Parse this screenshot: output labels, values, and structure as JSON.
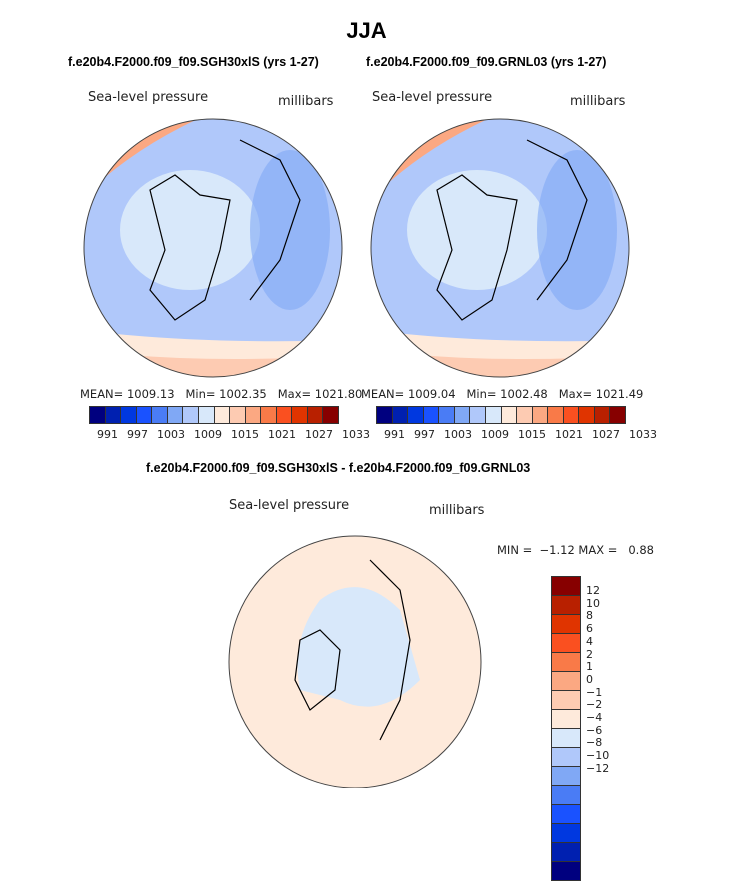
{
  "title": "JJA",
  "panels": [
    {
      "subtitle": "f.e20b4.F2000.f09_f09.SGH30xlS (yrs 1-27)",
      "variable": "Sea-level pressure",
      "units": "millibars",
      "mean": "MEAN= 1009.13",
      "min": "Min= 1002.35",
      "max": "Max= 1021.80"
    },
    {
      "subtitle": "f.e20b4.F2000.f09_f09.GRNL03 (yrs 1-27)",
      "variable": "Sea-level pressure",
      "units": "millibars",
      "mean": "MEAN= 1009.04",
      "min": "Min= 1002.48",
      "max": "Max= 1021.49"
    }
  ],
  "diff": {
    "subtitle": "f.e20b4.F2000.f09_f09.SGH30xlS - f.e20b4.F2000.f09_f09.GRNL03",
    "variable": "Sea-level pressure",
    "units": "millibars",
    "minmax": "MIN =  −1.12 MAX =   0.88",
    "labels": [
      "12",
      "10",
      "8",
      "6",
      "4",
      "2",
      "1",
      "0",
      "−1",
      "−2",
      "−4",
      "−6",
      "−8",
      "−10",
      "−12"
    ]
  },
  "colorbar_labels": [
    "991",
    "997",
    "1003",
    "1009",
    "1015",
    "1021",
    "1027",
    "1033"
  ],
  "colors": [
    "#00007f",
    "#0020b0",
    "#0038e0",
    "#1a52ff",
    "#4a7cf5",
    "#80a8f5",
    "#b0c8fa",
    "#d8e8fa",
    "#feeadb",
    "#fdcbb2",
    "#fba882",
    "#f97a48",
    "#fa5020",
    "#e03400",
    "#b82000",
    "#870000"
  ]
}
